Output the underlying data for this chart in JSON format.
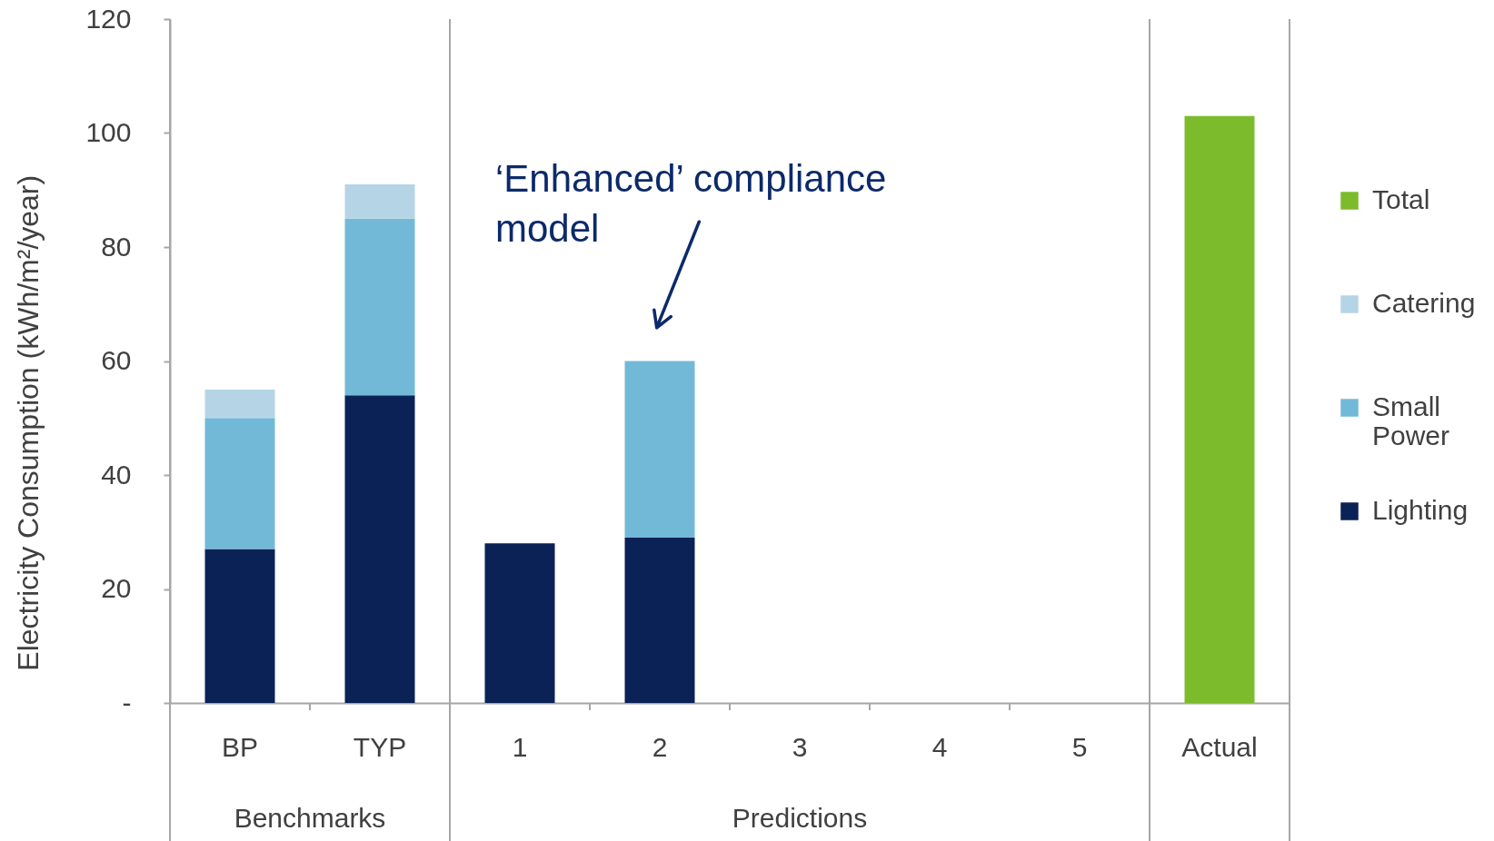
{
  "chart_data": {
    "type": "bar",
    "ylabel": "Electricity Consumption (kWh/m²/year)",
    "categories": [
      "BP",
      "TYP",
      "1",
      "2",
      "3",
      "4",
      "5",
      "Actual"
    ],
    "series": [
      {
        "name": "Lighting",
        "color": "#0b2257",
        "values": [
          27,
          54,
          28,
          29,
          null,
          null,
          null,
          null
        ]
      },
      {
        "name": "Small Power",
        "color": "#72b9d8",
        "values": [
          23,
          31,
          null,
          31,
          null,
          null,
          null,
          null
        ]
      },
      {
        "name": "Catering",
        "color": "#b5d5e6",
        "values": [
          5,
          6,
          null,
          null,
          null,
          null,
          null,
          null
        ]
      },
      {
        "name": "Total",
        "color": "#7cbb2b",
        "values": [
          null,
          null,
          null,
          null,
          null,
          null,
          null,
          103
        ]
      }
    ],
    "stacked": true,
    "ylim": [
      0,
      120
    ],
    "yticks": [
      {
        "value": 0,
        "label": "-"
      },
      20,
      40,
      60,
      80,
      100,
      120
    ],
    "legend": "right",
    "annotations": [
      {
        "text": "‘Enhanced’ compliance model",
        "x": "2",
        "y": 60
      },
      "Benchmarks",
      "Predictions"
    ]
  }
}
